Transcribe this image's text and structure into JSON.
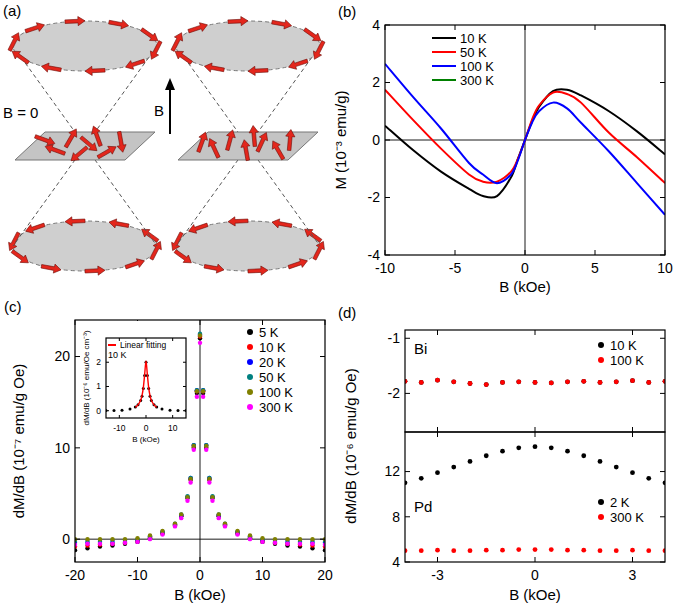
{
  "diagram": {
    "label": "(a)",
    "zero_field_label": "B = 0",
    "field_label": "B"
  },
  "chart_data": [
    {
      "type": "line",
      "title": "(b)",
      "xlabel": "B (kOe)",
      "ylabel": "M (10⁻³ emu/g)",
      "line_style": "solid",
      "x": [
        -10,
        -8,
        -6,
        -4,
        -3,
        -2,
        -1,
        -0.5,
        0,
        0.5,
        1,
        2,
        3,
        4,
        6,
        8,
        10
      ],
      "series": [
        {
          "name": "10 K",
          "color": "#000000",
          "values": [
            0.5,
            -0.35,
            -1.1,
            -1.7,
            -1.95,
            -1.95,
            -1.3,
            -0.65,
            0,
            0.65,
            1.15,
            1.7,
            1.75,
            1.55,
            1.0,
            0.3,
            -0.5
          ]
        },
        {
          "name": "50 K",
          "color": "#ff0000",
          "values": [
            1.75,
            0.7,
            -0.3,
            -1.2,
            -1.45,
            -1.45,
            -1.1,
            -0.65,
            0,
            0.7,
            1.2,
            1.65,
            1.6,
            1.3,
            0.25,
            -0.6,
            -1.5
          ]
        },
        {
          "name": "100 K",
          "color": "#0000ff",
          "values": [
            2.65,
            1.5,
            0.4,
            -0.8,
            -1.2,
            -1.5,
            -1.2,
            -0.7,
            0,
            0.6,
            1.0,
            1.3,
            1.1,
            0.6,
            -0.4,
            -1.5,
            -2.6
          ]
        },
        {
          "name": "300 K",
          "color": "#008000",
          "values": [
            null,
            null,
            null,
            null,
            null,
            null,
            null,
            null,
            null,
            null,
            null,
            null,
            null,
            null,
            null,
            null,
            null
          ]
        }
      ],
      "xlim": [
        -10,
        10
      ],
      "ylim": [
        -4,
        4
      ],
      "xticks": [
        -10,
        -5,
        0,
        5,
        10
      ],
      "yticks": [
        -4,
        -2,
        0,
        2,
        4
      ],
      "legend": "upper left"
    },
    {
      "type": "scatter",
      "title": "(c)",
      "xlabel": "B (kOe)",
      "ylabel": "dM/dB (10⁻⁷ emu/g Oe)",
      "marker": "circle",
      "x": [
        -20,
        -18,
        -16,
        -14,
        -12,
        -10,
        -8,
        -6,
        -4,
        -3,
        -2,
        -1.5,
        -1,
        -0.5,
        0,
        0.5,
        1,
        1.5,
        2,
        3,
        4,
        6,
        8,
        10,
        12,
        14,
        16,
        18,
        20
      ],
      "series": [
        {
          "name": "5 K",
          "color": "#000000",
          "values": [
            -1.2,
            -1.0,
            -0.8,
            -0.7,
            -0.5,
            -0.3,
            0.1,
            0.6,
            1.5,
            2.5,
            4.5,
            6.5,
            10,
            16,
            22,
            16,
            10,
            6.5,
            4.5,
            2.5,
            1.5,
            0.6,
            0.1,
            -0.3,
            -0.5,
            -0.7,
            -0.8,
            -1.0,
            -1.2
          ]
        },
        {
          "name": "10 K",
          "color": "#ff0000",
          "values": [
            -0.8,
            -0.7,
            -0.6,
            -0.5,
            -0.4,
            -0.2,
            0.2,
            0.7,
            1.6,
            2.6,
            4.6,
            6.6,
            10.2,
            16.2,
            22.2,
            16.2,
            10.2,
            6.6,
            4.6,
            2.6,
            1.6,
            0.7,
            0.2,
            -0.2,
            -0.4,
            -0.5,
            -0.6,
            -0.7,
            -0.8
          ]
        },
        {
          "name": "20 K",
          "color": "#0000ff",
          "values": [
            -0.4,
            -0.4,
            -0.3,
            -0.3,
            -0.2,
            -0.1,
            0.3,
            0.8,
            1.6,
            2.6,
            4.6,
            6.7,
            10.3,
            16.3,
            22.4,
            16.3,
            10.3,
            6.7,
            4.6,
            2.6,
            1.6,
            0.8,
            0.3,
            -0.1,
            -0.2,
            -0.3,
            -0.3,
            -0.4,
            -0.4
          ]
        },
        {
          "name": "50 K",
          "color": "#008080",
          "values": [
            -0.2,
            -0.2,
            -0.2,
            -0.1,
            -0.1,
            0,
            0.3,
            0.8,
            1.7,
            2.7,
            4.7,
            6.7,
            10.3,
            16.3,
            22.5,
            16.3,
            10.3,
            6.7,
            4.7,
            2.7,
            1.7,
            0.8,
            0.3,
            0,
            -0.1,
            -0.1,
            -0.2,
            -0.2,
            -0.2
          ]
        },
        {
          "name": "100 K",
          "color": "#808000",
          "values": [
            0,
            0,
            0,
            0,
            0,
            0.1,
            0.4,
            0.9,
            1.7,
            2.7,
            4.6,
            6.6,
            10.2,
            16.2,
            22.3,
            16.2,
            10.2,
            6.6,
            4.6,
            2.7,
            1.7,
            0.9,
            0.4,
            0.1,
            0,
            0,
            0,
            0,
            0
          ]
        },
        {
          "name": "300 K",
          "color": "#ff00ff",
          "values": [
            -0.6,
            -0.5,
            -0.5,
            -0.5,
            -0.4,
            -0.3,
            0,
            0.5,
            1.4,
            2.3,
            4.2,
            6.2,
            9.8,
            15.6,
            21.5,
            15.6,
            9.8,
            6.2,
            4.2,
            2.3,
            1.4,
            0.5,
            0,
            -0.3,
            -0.4,
            -0.5,
            -0.5,
            -0.5,
            -0.6
          ]
        }
      ],
      "xlim": [
        -20,
        20
      ],
      "ylim": [
        -2.5,
        24
      ],
      "xticks": [
        -20,
        -10,
        0,
        10,
        20
      ],
      "yticks": [
        0,
        10,
        20
      ],
      "legend": "upper right"
    },
    {
      "type": "scatter",
      "annotations": [
        "10 K"
      ],
      "xlabel": "B (kOe)",
      "ylabel": "dM/dB (10⁻⁶ emu/Oe cm⁻³)",
      "marker": "circle",
      "x": [
        -15,
        -12,
        -9,
        -6,
        -4,
        -3,
        -2,
        -1.5,
        -1,
        -0.5,
        0,
        0.5,
        1,
        1.5,
        2,
        3,
        4,
        6,
        9,
        12,
        15
      ],
      "series": [
        {
          "color": "#000000",
          "values": [
            0.01,
            0.01,
            0.02,
            0.07,
            0.15,
            0.25,
            0.42,
            0.6,
            0.92,
            1.45,
            2.0,
            1.45,
            0.92,
            0.6,
            0.42,
            0.25,
            0.15,
            0.07,
            0.02,
            0.01,
            0.01
          ]
        },
        {
          "name": "Linear fitting",
          "type": "line",
          "color": "#ff0000",
          "values": [
            null,
            null,
            null,
            null,
            0.14,
            0.24,
            0.43,
            0.62,
            0.95,
            1.5,
            2.05,
            1.5,
            0.95,
            0.62,
            0.43,
            0.24,
            0.14,
            null,
            null,
            null,
            null
          ]
        }
      ],
      "xlim": [
        -15,
        15
      ],
      "ylim": [
        -0.3,
        3
      ],
      "xticks": [
        -10,
        0,
        10
      ],
      "yticks": [
        0,
        1,
        2
      ],
      "legend": "upper left"
    },
    {
      "type": "scatter",
      "title": "(d)",
      "annotations": [
        "Bi"
      ],
      "ylabel": "dM/dB (10⁻⁶ emu/g Oe)",
      "marker": "circle",
      "tick_labels": "y",
      "x": [
        -4,
        -3.5,
        -3,
        -2.5,
        -2,
        -1.5,
        -1,
        -0.5,
        0,
        0.5,
        1,
        1.5,
        2,
        2.5,
        3,
        3.5,
        4
      ],
      "series": [
        {
          "name": "10 K",
          "color": "#000000",
          "values": [
            -1.78,
            -1.8,
            -1.76,
            -1.79,
            -1.82,
            -1.84,
            -1.8,
            -1.79,
            -1.8,
            -1.81,
            -1.79,
            -1.78,
            -1.8,
            -1.79,
            -1.77,
            -1.8,
            -1.78
          ]
        },
        {
          "name": "100 K",
          "color": "#ff0000",
          "values": [
            -1.78,
            -1.8,
            -1.76,
            -1.79,
            -1.82,
            -1.84,
            -1.8,
            -1.79,
            -1.8,
            -1.81,
            -1.79,
            -1.78,
            -1.8,
            -1.79,
            -1.77,
            -1.8,
            -1.78
          ]
        }
      ],
      "xlim": [
        -4,
        4
      ],
      "ylim": [
        -2.7,
        -0.85
      ],
      "xticks": [
        -3,
        0,
        3
      ],
      "yticks": [
        -2,
        -1
      ],
      "legend": "upper right"
    },
    {
      "type": "scatter",
      "annotations": [
        "Pd"
      ],
      "xlabel": "B (kOe)",
      "marker": "circle",
      "x": [
        -4,
        -3.5,
        -3,
        -2.5,
        -2,
        -1.5,
        -1,
        -0.5,
        0,
        0.5,
        1,
        1.5,
        2,
        2.5,
        3,
        3.5,
        4
      ],
      "series": [
        {
          "name": "2 K",
          "color": "#000000",
          "values": [
            11.0,
            11.4,
            11.9,
            12.4,
            12.9,
            13.4,
            13.8,
            14.1,
            14.2,
            14.1,
            13.8,
            13.4,
            12.9,
            12.4,
            11.9,
            11.4,
            11.0
          ]
        },
        {
          "name": "300 K",
          "color": "#ff0000",
          "values": [
            5.0,
            5.0,
            5.05,
            5.0,
            5.0,
            5.05,
            5.05,
            5.1,
            5.1,
            5.1,
            5.05,
            5.05,
            5.0,
            5.0,
            5.05,
            5.0,
            5.0
          ]
        }
      ],
      "xlim": [
        -4,
        4
      ],
      "ylim": [
        4,
        15.5
      ],
      "xticks": [
        -3,
        0,
        3
      ],
      "yticks": [
        4,
        8,
        12
      ],
      "legend": "right"
    }
  ]
}
